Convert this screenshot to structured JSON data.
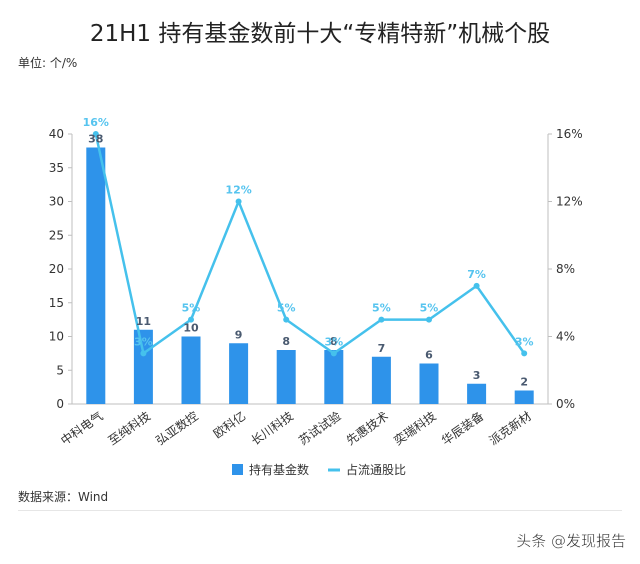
{
  "title": "21H1 持有基金数前十大“专精特新”机械个股",
  "unit_label": "单位: 个/%",
  "source": "数据来源：Wind",
  "watermark": "头条 @发现报告",
  "colors": {
    "bar": "#2e93ea",
    "line": "#45c1ec",
    "bar_label": "#4a5a70",
    "line_label": "#56c4ef"
  },
  "chart_data": {
    "type": "bar",
    "categories": [
      "中科电气",
      "至纯科技",
      "弘亚数控",
      "欧科亿",
      "长川科技",
      "苏试试验",
      "先惠技术",
      "奕瑞科技",
      "华辰装备",
      "派克新材"
    ],
    "series": [
      {
        "name": "持有基金数",
        "type": "bar",
        "axis": "left",
        "values": [
          38,
          11,
          10,
          9,
          8,
          8,
          7,
          6,
          3,
          2
        ],
        "labels": [
          "38",
          "11",
          "10",
          "9",
          "8",
          "8",
          "7",
          "6",
          "3",
          "2"
        ]
      },
      {
        "name": "占流通股比",
        "type": "line",
        "axis": "right",
        "values": [
          16,
          3,
          5,
          12,
          5,
          3,
          5,
          5,
          7,
          3
        ],
        "labels": [
          "16%",
          "3%",
          "5%",
          "12%",
          "5%",
          "3%",
          "5%",
          "5%",
          "7%",
          "3%"
        ]
      }
    ],
    "y_left": {
      "range": [
        0,
        40
      ],
      "ticks": [
        "0",
        "5",
        "10",
        "15",
        "20",
        "25",
        "30",
        "35",
        "40"
      ]
    },
    "y_right": {
      "range": [
        0,
        16
      ],
      "ticks": [
        "0%",
        "4%",
        "8%",
        "12%",
        "16%"
      ]
    },
    "grid": false,
    "legend": "bottom"
  }
}
